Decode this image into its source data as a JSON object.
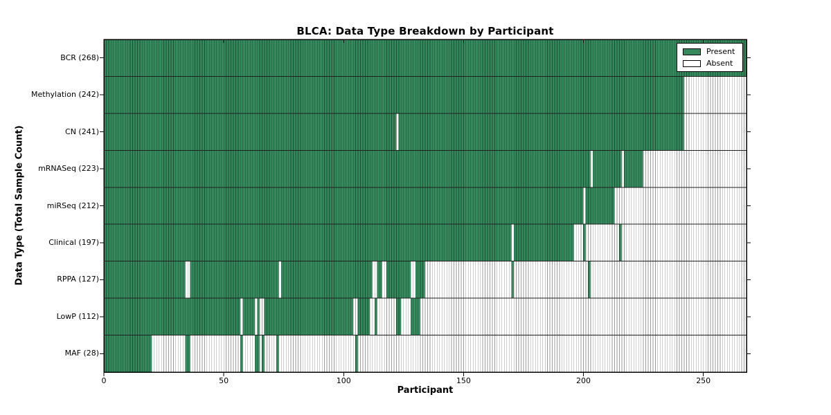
{
  "chart_data": {
    "type": "heatmap",
    "title": "BLCA: Data Type Breakdown by Participant",
    "xlabel": "Participant",
    "ylabel": "Data Type (Total Sample Count)",
    "x_range": [
      0,
      268
    ],
    "x_ticks": [
      0,
      50,
      100,
      150,
      200,
      250
    ],
    "grid": "off",
    "legend_position": "upper-right",
    "legend": [
      {
        "label": "Present",
        "state": "present"
      },
      {
        "label": "Absent",
        "state": "absent"
      }
    ],
    "rows": [
      {
        "label": "BCR (268)",
        "data_type": "BCR",
        "total_samples": 268,
        "present_runs": [
          [
            0,
            268
          ]
        ]
      },
      {
        "label": "Methylation (242)",
        "data_type": "Methylation",
        "total_samples": 242,
        "present_runs": [
          [
            0,
            242
          ]
        ]
      },
      {
        "label": "CN (241)",
        "data_type": "CN",
        "total_samples": 241,
        "present_runs": [
          [
            0,
            122
          ],
          [
            123,
            242
          ]
        ]
      },
      {
        "label": "mRNASeq (223)",
        "data_type": "mRNASeq",
        "total_samples": 223,
        "present_runs": [
          [
            0,
            203
          ],
          [
            204,
            216
          ],
          [
            217,
            225
          ]
        ]
      },
      {
        "label": "miRSeq (212)",
        "data_type": "miRSeq",
        "total_samples": 212,
        "present_runs": [
          [
            0,
            200
          ],
          [
            201,
            213
          ]
        ]
      },
      {
        "label": "Clinical (197)",
        "data_type": "Clinical",
        "total_samples": 197,
        "present_runs": [
          [
            0,
            170
          ],
          [
            171,
            196
          ],
          [
            200,
            201
          ],
          [
            215,
            216
          ]
        ]
      },
      {
        "label": "RPPA (127)",
        "data_type": "RPPA",
        "total_samples": 127,
        "present_runs": [
          [
            0,
            34
          ],
          [
            36,
            73
          ],
          [
            74,
            112
          ],
          [
            114,
            116
          ],
          [
            118,
            128
          ],
          [
            130,
            134
          ],
          [
            170,
            171
          ],
          [
            202,
            203
          ]
        ]
      },
      {
        "label": "LowP (112)",
        "data_type": "LowP",
        "total_samples": 112,
        "present_runs": [
          [
            0,
            57
          ],
          [
            58,
            63
          ],
          [
            64,
            65
          ],
          [
            67,
            104
          ],
          [
            106,
            111
          ],
          [
            113,
            114
          ],
          [
            122,
            124
          ],
          [
            128,
            132
          ]
        ]
      },
      {
        "label": "MAF (28)",
        "data_type": "MAF",
        "total_samples": 28,
        "present_runs": [
          [
            0,
            20
          ],
          [
            34,
            36
          ],
          [
            57,
            58
          ],
          [
            63,
            65
          ],
          [
            66,
            67
          ],
          [
            72,
            73
          ],
          [
            105,
            106
          ]
        ]
      }
    ]
  },
  "colors": {
    "present_fill": "#35895c",
    "present_edge": "#1b4f33",
    "absent_fill": "#ffffff",
    "absent_edge": "#9b9b9b",
    "row_separator": "#1f1f1f",
    "frame": "#000000",
    "background": "#ffffff"
  }
}
